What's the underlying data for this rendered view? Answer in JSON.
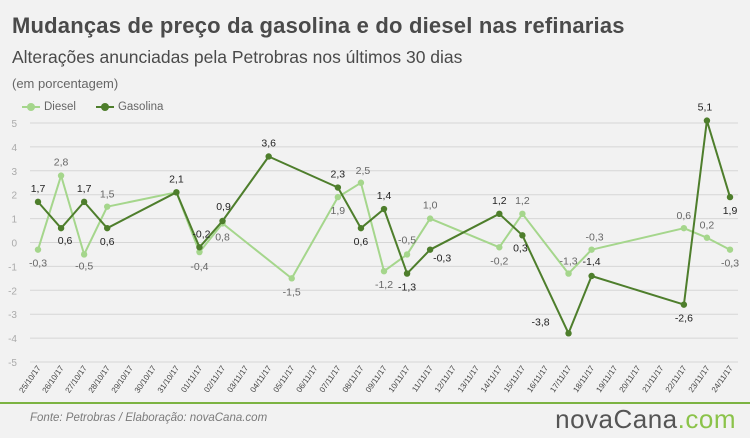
{
  "title": "Mudanças de preço da gasolina e do diesel nas refinarias",
  "subtitle": "Alterações anunciadas pela Petrobras nos últimos 30 dias",
  "unit_note": "(em porcentagem)",
  "source": "Fonte: Petrobras  / Elaboração: novaCana.com",
  "brand": {
    "main": "novaCana",
    "suffix": ".com"
  },
  "colors": {
    "diesel": "#a5d68c",
    "gasolina": "#4e7e2c",
    "grid": "#d6d6d6",
    "axis_text": "#aaaaaa",
    "background": "#f2f2f2",
    "brand_accent": "#8bc34a"
  },
  "chart_data": {
    "type": "line",
    "title": "Mudanças de preço da gasolina e do diesel nas refinarias",
    "subtitle": "Alterações anunciadas pela Petrobras nos últimos 30 dias",
    "ylabel": "(em porcentagem)",
    "xlabel": "",
    "ylim": [
      -5,
      5
    ],
    "yticks": [
      -5,
      -4,
      -3,
      -2,
      -1,
      0,
      1,
      2,
      3,
      4,
      5
    ],
    "grid": true,
    "legend": "top-left",
    "categories": [
      "25/10/17",
      "26/10/17",
      "27/10/17",
      "28/10/17",
      "29/10/17",
      "30/10/17",
      "31/10/17",
      "01/11/17",
      "02/11/17",
      "03/11/17",
      "04/11/17",
      "05/11/17",
      "06/11/17",
      "07/11/17",
      "08/11/17",
      "09/11/17",
      "10/11/17",
      "11/11/17",
      "12/11/17",
      "13/11/17",
      "14/11/17",
      "15/11/17",
      "16/11/17",
      "17/11/17",
      "18/11/17",
      "19/11/17",
      "20/11/17",
      "21/11/17",
      "22/11/17",
      "23/11/17",
      "24/11/17"
    ],
    "series": [
      {
        "name": "Diesel",
        "points": [
          {
            "x": "25/10/17",
            "y": -0.3,
            "label": "-0,3"
          },
          {
            "x": "26/10/17",
            "y": 2.8,
            "label": "2,8"
          },
          {
            "x": "27/10/17",
            "y": -0.5,
            "label": "-0,5"
          },
          {
            "x": "28/10/17",
            "y": 1.5,
            "label": "1,5"
          },
          {
            "x": "31/10/17",
            "y": 2.1
          },
          {
            "x": "01/11/17",
            "y": -0.4,
            "label": "-0,4"
          },
          {
            "x": "02/11/17",
            "y": 0.8,
            "label": "0,8"
          },
          {
            "x": "05/11/17",
            "y": -1.5,
            "label": "-1,5"
          },
          {
            "x": "07/11/17",
            "y": 1.9,
            "label": "1,9"
          },
          {
            "x": "08/11/17",
            "y": 2.5,
            "label": "2,5"
          },
          {
            "x": "09/11/17",
            "y": -1.2,
            "label": "-1,2"
          },
          {
            "x": "10/11/17",
            "y": -0.5,
            "label": "-0,5"
          },
          {
            "x": "11/11/17",
            "y": 1.0,
            "label": "1,0"
          },
          {
            "x": "14/11/17",
            "y": -0.2,
            "label": "-0,2"
          },
          {
            "x": "15/11/17",
            "y": 1.2,
            "label": "1,2"
          },
          {
            "x": "17/11/17",
            "y": -1.3,
            "label": "-1,3"
          },
          {
            "x": "18/11/17",
            "y": -0.3,
            "label": "-0,3"
          },
          {
            "x": "22/11/17",
            "y": 0.6,
            "label": "0,6"
          },
          {
            "x": "23/11/17",
            "y": 0.2,
            "label": "0,2"
          },
          {
            "x": "24/11/17",
            "y": -0.3,
            "label": "-0,3"
          }
        ]
      },
      {
        "name": "Gasolina",
        "points": [
          {
            "x": "25/10/17",
            "y": 1.7,
            "label": "1,7"
          },
          {
            "x": "26/10/17",
            "y": 0.6,
            "label": "0,6"
          },
          {
            "x": "27/10/17",
            "y": 1.7,
            "label": "1,7"
          },
          {
            "x": "28/10/17",
            "y": 0.6,
            "label": "0,6"
          },
          {
            "x": "31/10/17",
            "y": 2.1,
            "label": "2,1"
          },
          {
            "x": "01/11/17",
            "y": -0.2,
            "label": "-0,2"
          },
          {
            "x": "02/11/17",
            "y": 0.9,
            "label": "0,9"
          },
          {
            "x": "04/11/17",
            "y": 3.6,
            "label": "3,6"
          },
          {
            "x": "07/11/17",
            "y": 2.3,
            "label": "2,3"
          },
          {
            "x": "08/11/17",
            "y": 0.6,
            "label": "0,6"
          },
          {
            "x": "09/11/17",
            "y": 1.4,
            "label": "1,4"
          },
          {
            "x": "10/11/17",
            "y": -1.3,
            "label": "-1,3"
          },
          {
            "x": "11/11/17",
            "y": -0.3,
            "label": "-0,3"
          },
          {
            "x": "14/11/17",
            "y": 1.2,
            "label": "1,2"
          },
          {
            "x": "15/11/17",
            "y": 0.3,
            "label": "0,3"
          },
          {
            "x": "17/11/17",
            "y": -3.8,
            "label": "-3,8"
          },
          {
            "x": "18/11/17",
            "y": -1.4,
            "label": "-1,4"
          },
          {
            "x": "22/11/17",
            "y": -2.6,
            "label": "-2,6"
          },
          {
            "x": "23/11/17",
            "y": 5.1,
            "label": "5,1"
          },
          {
            "x": "24/11/17",
            "y": 1.9,
            "label": "1,9"
          }
        ]
      }
    ]
  }
}
